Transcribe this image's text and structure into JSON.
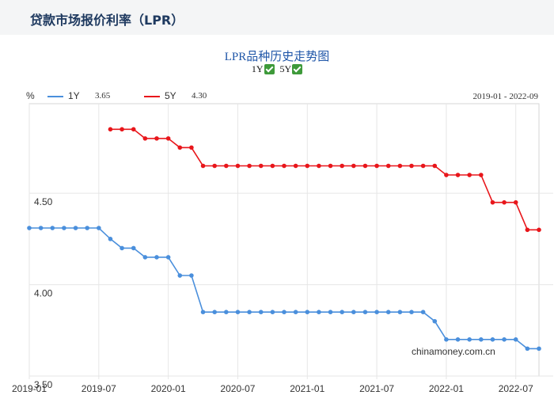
{
  "header": {
    "title": "贷款市场报价利率（LPR）"
  },
  "toggles": [
    {
      "label": "1Y",
      "checked": true
    },
    {
      "label": "5Y",
      "checked": true
    }
  ],
  "legend": [
    {
      "label": "1Y",
      "value": "3.65",
      "color": "#4a8fdc"
    },
    {
      "label": "5Y",
      "value": "4.30",
      "color": "#e8161b"
    }
  ],
  "watermark": "chinamoney.com.cn",
  "chart_data": {
    "type": "line",
    "title": "LPR品种历史走势图",
    "ylabel": "%",
    "date_range": "2019-01 - 2022-09",
    "ylim": [
      3.5,
      4.99
    ],
    "yticks": [
      "4.50",
      "4.00",
      "3.50"
    ],
    "x_ticks": [
      "2019-01",
      "2019-07",
      "2020-01",
      "2020-07",
      "2021-01",
      "2021-07",
      "2022-01",
      "2022-07"
    ],
    "x": [
      "2019-01",
      "2019-02",
      "2019-03",
      "2019-04",
      "2019-05",
      "2019-06",
      "2019-07",
      "2019-08",
      "2019-09",
      "2019-10",
      "2019-11",
      "2019-12",
      "2020-01",
      "2020-02",
      "2020-03",
      "2020-04",
      "2020-05",
      "2020-06",
      "2020-07",
      "2020-08",
      "2020-09",
      "2020-10",
      "2020-11",
      "2020-12",
      "2021-01",
      "2021-02",
      "2021-03",
      "2021-04",
      "2021-05",
      "2021-06",
      "2021-07",
      "2021-08",
      "2021-09",
      "2021-10",
      "2021-11",
      "2021-12",
      "2022-01",
      "2022-02",
      "2022-03",
      "2022-04",
      "2022-05",
      "2022-06",
      "2022-07",
      "2022-08",
      "2022-09"
    ],
    "series": [
      {
        "name": "1Y",
        "color": "#4a8fdc",
        "values": [
          4.31,
          4.31,
          4.31,
          4.31,
          4.31,
          4.31,
          4.31,
          4.25,
          4.2,
          4.2,
          4.15,
          4.15,
          4.15,
          4.05,
          4.05,
          3.85,
          3.85,
          3.85,
          3.85,
          3.85,
          3.85,
          3.85,
          3.85,
          3.85,
          3.85,
          3.85,
          3.85,
          3.85,
          3.85,
          3.85,
          3.85,
          3.85,
          3.85,
          3.85,
          3.85,
          3.8,
          3.7,
          3.7,
          3.7,
          3.7,
          3.7,
          3.7,
          3.7,
          3.65,
          3.65
        ]
      },
      {
        "name": "5Y",
        "color": "#e8161b",
        "values": [
          null,
          null,
          null,
          null,
          null,
          null,
          null,
          4.85,
          4.85,
          4.85,
          4.8,
          4.8,
          4.8,
          4.75,
          4.75,
          4.65,
          4.65,
          4.65,
          4.65,
          4.65,
          4.65,
          4.65,
          4.65,
          4.65,
          4.65,
          4.65,
          4.65,
          4.65,
          4.65,
          4.65,
          4.65,
          4.65,
          4.65,
          4.65,
          4.65,
          4.65,
          4.6,
          4.6,
          4.6,
          4.6,
          4.45,
          4.45,
          4.45,
          4.3,
          4.3
        ]
      }
    ]
  }
}
